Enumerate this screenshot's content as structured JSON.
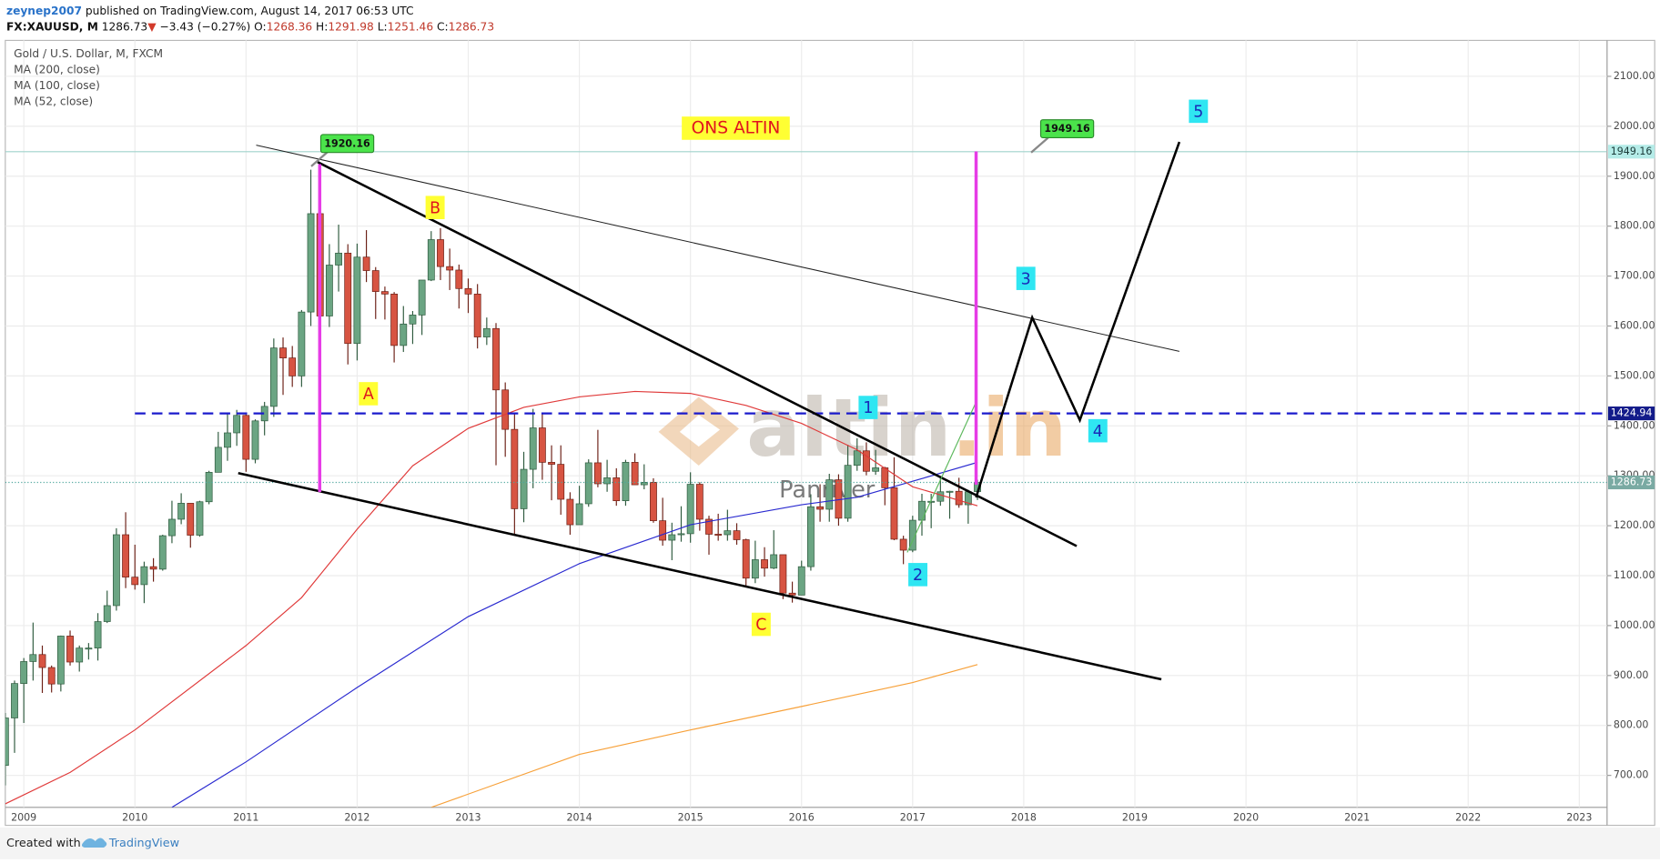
{
  "header": {
    "author": "zeynep2007",
    "published": "published on TradingView.com, August 14, 2017 06:53 UTC",
    "symbol": "FX:XAUUSD, M",
    "last": "1286.73",
    "arrow": "▼",
    "change": "−3.43 (−0.27%)",
    "ohlc": [
      [
        "O:",
        "1268.36"
      ],
      [
        "H:",
        "1291.98"
      ],
      [
        "L:",
        "1251.46"
      ],
      [
        "C:",
        "1286.73"
      ]
    ]
  },
  "footer": {
    "text": "Created with",
    "brand": "TradingView"
  },
  "chart_data": {
    "type": "candlestick",
    "title": "Gold / U.S. Dollar, M, FXCM",
    "up_color": "#6ba583",
    "down_color": "#d75442",
    "xlim": [
      "2008-11",
      "2023-04"
    ],
    "xticks": [
      2009,
      2010,
      2011,
      2012,
      2013,
      2014,
      2015,
      2016,
      2017,
      2018,
      2019,
      2020,
      2021,
      2022,
      2023
    ],
    "ylim": [
      636,
      2172
    ],
    "yticks": [
      {
        "value": 700,
        "label": "700.00"
      },
      {
        "value": 800,
        "label": "800.00"
      },
      {
        "value": 900,
        "label": "900.00"
      },
      {
        "value": 1000,
        "label": "1000.00"
      },
      {
        "value": 1100,
        "label": "1100.00"
      },
      {
        "value": 1200,
        "label": "1200.00"
      },
      {
        "value": 1300,
        "label": "1300.00"
      },
      {
        "value": 1400,
        "label": "1400.00"
      },
      {
        "value": 1500,
        "label": "1500.00"
      },
      {
        "value": 1600,
        "label": "1600.00"
      },
      {
        "value": 1700,
        "label": "1700.00"
      },
      {
        "value": 1800,
        "label": "1800.00"
      },
      {
        "value": 1900,
        "label": "1900.00"
      },
      {
        "value": 2000,
        "label": "2000.00"
      },
      {
        "value": 2100,
        "label": "2100.00"
      }
    ],
    "grid": true,
    "x": [
      "2008-11",
      "2008-12",
      "2009-01",
      "2009-02",
      "2009-03",
      "2009-04",
      "2009-05",
      "2009-06",
      "2009-07",
      "2009-08",
      "2009-09",
      "2009-10",
      "2009-11",
      "2009-12",
      "2010-01",
      "2010-02",
      "2010-03",
      "2010-04",
      "2010-05",
      "2010-06",
      "2010-07",
      "2010-08",
      "2010-09",
      "2010-10",
      "2010-11",
      "2010-12",
      "2011-01",
      "2011-02",
      "2011-03",
      "2011-04",
      "2011-05",
      "2011-06",
      "2011-07",
      "2011-08",
      "2011-09",
      "2011-10",
      "2011-11",
      "2011-12",
      "2012-01",
      "2012-02",
      "2012-03",
      "2012-04",
      "2012-05",
      "2012-06",
      "2012-07",
      "2012-08",
      "2012-09",
      "2012-10",
      "2012-11",
      "2012-12",
      "2013-01",
      "2013-02",
      "2013-03",
      "2013-04",
      "2013-05",
      "2013-06",
      "2013-07",
      "2013-08",
      "2013-09",
      "2013-10",
      "2013-11",
      "2013-12",
      "2014-01",
      "2014-02",
      "2014-03",
      "2014-04",
      "2014-05",
      "2014-06",
      "2014-07",
      "2014-08",
      "2014-09",
      "2014-10",
      "2014-11",
      "2014-12",
      "2015-01",
      "2015-02",
      "2015-03",
      "2015-04",
      "2015-05",
      "2015-06",
      "2015-07",
      "2015-08",
      "2015-09",
      "2015-10",
      "2015-11",
      "2015-12",
      "2016-01",
      "2016-02",
      "2016-03",
      "2016-04",
      "2016-05",
      "2016-06",
      "2016-07",
      "2016-08",
      "2016-09",
      "2016-10",
      "2016-11",
      "2016-12",
      "2017-01",
      "2017-02",
      "2017-03",
      "2017-04",
      "2017-05",
      "2017-06",
      "2017-07",
      "2017-08"
    ],
    "open": [
      720,
      815,
      884,
      928,
      942,
      916,
      883,
      979,
      927,
      955,
      955,
      1008,
      1040,
      1182,
      1097,
      1082,
      1118,
      1113,
      1180,
      1213,
      1245,
      1181,
      1248,
      1307,
      1357,
      1386,
      1421,
      1333,
      1410,
      1439,
      1556,
      1536,
      1500,
      1628,
      1825,
      1620,
      1722,
      1746,
      1565,
      1738,
      1711,
      1669,
      1664,
      1561,
      1604,
      1622,
      1692,
      1773,
      1719,
      1712,
      1675,
      1664,
      1578,
      1595,
      1472,
      1393,
      1234,
      1313,
      1396,
      1327,
      1323,
      1253,
      1202,
      1244,
      1326,
      1284,
      1296,
      1250,
      1327,
      1282,
      1287,
      1210,
      1171,
      1182,
      1184,
      1283,
      1213,
      1183,
      1182,
      1190,
      1172,
      1095,
      1132,
      1115,
      1142,
      1065,
      1061,
      1118,
      1238,
      1233,
      1292,
      1215,
      1321,
      1350,
      1309,
      1316,
      1276,
      1173,
      1151,
      1211,
      1249,
      1249,
      1268,
      1269,
      1242,
      1268.36
    ],
    "high": [
      825,
      890,
      935,
      1006,
      960,
      920,
      980,
      990,
      960,
      965,
      1025,
      1070,
      1195,
      1227,
      1162,
      1128,
      1135,
      1182,
      1250,
      1265,
      1245,
      1250,
      1310,
      1388,
      1425,
      1432,
      1423,
      1413,
      1448,
      1575,
      1577,
      1560,
      1632,
      1913,
      1920.16,
      1764,
      1803,
      1764,
      1765,
      1792,
      1718,
      1679,
      1668,
      1640,
      1630,
      1692,
      1790,
      1796,
      1755,
      1723,
      1695,
      1684,
      1617,
      1606,
      1487,
      1424,
      1348,
      1434,
      1424,
      1361,
      1361,
      1267,
      1280,
      1333,
      1392,
      1332,
      1315,
      1332,
      1345,
      1323,
      1295,
      1256,
      1206,
      1239,
      1307,
      1287,
      1220,
      1224,
      1232,
      1205,
      1174,
      1170,
      1157,
      1191,
      1142,
      1088,
      1130,
      1263,
      1283,
      1304,
      1303,
      1362,
      1375,
      1367,
      1352,
      1318,
      1337,
      1180,
      1220,
      1264,
      1264,
      1295,
      1270,
      1296,
      1272,
      1291.98
    ],
    "low": [
      680,
      745,
      805,
      890,
      865,
      866,
      868,
      920,
      908,
      932,
      930,
      1005,
      1030,
      1075,
      1072,
      1045,
      1088,
      1110,
      1165,
      1203,
      1156,
      1178,
      1243,
      1307,
      1330,
      1360,
      1308,
      1325,
      1381,
      1418,
      1462,
      1478,
      1478,
      1600,
      1535,
      1598,
      1669,
      1523,
      1531,
      1688,
      1614,
      1613,
      1527,
      1548,
      1564,
      1582,
      1690,
      1692,
      1672,
      1635,
      1626,
      1555,
      1562,
      1321,
      1338,
      1180,
      1207,
      1275,
      1292,
      1251,
      1222,
      1182,
      1202,
      1238,
      1277,
      1268,
      1240,
      1240,
      1284,
      1273,
      1206,
      1160,
      1131,
      1168,
      1166,
      1190,
      1142,
      1170,
      1170,
      1162,
      1077,
      1085,
      1098,
      1113,
      1053,
      1046,
      1062,
      1110,
      1208,
      1208,
      1200,
      1208,
      1310,
      1301,
      1302,
      1241,
      1171,
      1123,
      1147,
      1180,
      1195,
      1240,
      1214,
      1236,
      1204,
      1251.46
    ],
    "close": [
      815,
      884,
      928,
      942,
      916,
      883,
      979,
      927,
      955,
      955,
      1008,
      1040,
      1182,
      1097,
      1082,
      1118,
      1113,
      1180,
      1213,
      1245,
      1181,
      1248,
      1307,
      1357,
      1386,
      1421,
      1333,
      1410,
      1439,
      1556,
      1536,
      1500,
      1628,
      1825,
      1620,
      1722,
      1746,
      1565,
      1738,
      1711,
      1669,
      1664,
      1561,
      1604,
      1622,
      1692,
      1773,
      1719,
      1712,
      1675,
      1664,
      1578,
      1595,
      1472,
      1393,
      1234,
      1313,
      1396,
      1327,
      1323,
      1253,
      1202,
      1244,
      1326,
      1284,
      1296,
      1250,
      1327,
      1282,
      1287,
      1210,
      1171,
      1182,
      1184,
      1283,
      1213,
      1183,
      1182,
      1190,
      1172,
      1095,
      1132,
      1115,
      1142,
      1065,
      1061,
      1118,
      1238,
      1233,
      1292,
      1215,
      1321,
      1350,
      1309,
      1316,
      1276,
      1173,
      1151,
      1211,
      1249,
      1249,
      1268,
      1269,
      1242,
      1268,
      1286.73
    ],
    "series": [
      {
        "name": "MA (200, close)",
        "color": "#f7a13a",
        "x": [
          "2012-09",
          "2014-01",
          "2015-01",
          "2016-01",
          "2017-01",
          "2017-08"
        ],
        "values": [
          636,
          742,
          791,
          838,
          886,
          922
        ]
      },
      {
        "name": "MA (100, close)",
        "color": "#2a2ad0",
        "x": [
          "2010-05",
          "2011-01",
          "2012-01",
          "2013-01",
          "2014-01",
          "2015-01",
          "2016-01",
          "2016-07",
          "2017-01",
          "2017-08"
        ],
        "values": [
          636,
          727,
          876,
          1018,
          1124,
          1202,
          1242,
          1257,
          1289,
          1327
        ]
      },
      {
        "name": "MA (52, close)",
        "color": "#e03a3a",
        "x": [
          "2008-11",
          "2009-06",
          "2010-01",
          "2011-01",
          "2011-07",
          "2012-01",
          "2012-07",
          "2013-01",
          "2013-07",
          "2014-01",
          "2014-07",
          "2015-01",
          "2015-07",
          "2016-01",
          "2016-07",
          "2017-01",
          "2017-08"
        ],
        "values": [
          643,
          706,
          791,
          960,
          1056,
          1193,
          1320,
          1395,
          1437,
          1458,
          1469,
          1465,
          1441,
          1405,
          1352,
          1278,
          1240
        ]
      }
    ],
    "hlines": [
      {
        "value": 1949.16,
        "color": "#9fd3cc",
        "style": "solid",
        "label_color": "#b5ece8",
        "text_color": "#1b3b39"
      },
      {
        "value": 1424.94,
        "color": "#1a1acc",
        "style": "dashed",
        "label_color": "#131b8a",
        "text_color": "#ffffff",
        "start": "2010-01"
      },
      {
        "value": 1286.73,
        "color": "#4ba59c",
        "style": "dotted",
        "label_color": "#7aaaa3",
        "text_color": "#ffffff"
      }
    ],
    "annotations": {
      "title": "ONS ALTIN",
      "callouts": [
        1920.16,
        1949.16
      ],
      "waves": [
        "A",
        "B",
        "C",
        "1",
        "2",
        "3",
        "4",
        "5"
      ],
      "watermark": {
        "brand": "altin",
        "tld": ".in",
        "sub": "Panriver"
      }
    }
  }
}
